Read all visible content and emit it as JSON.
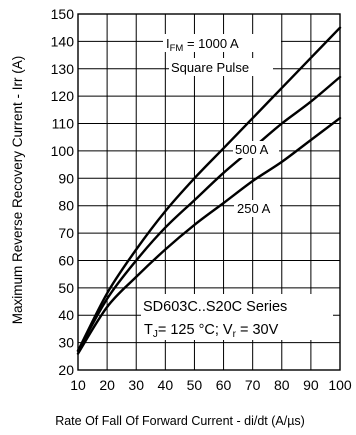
{
  "chart_data": {
    "type": "line",
    "xlabel": "Rate Of Fall Of Forward Current - di/dt (A/µs)",
    "ylabel": "Maximum Reverse Recovery Current - Irr (A)",
    "xlim": [
      10,
      100
    ],
    "ylim": [
      20,
      150
    ],
    "xticks": [
      10,
      20,
      30,
      40,
      50,
      60,
      70,
      80,
      90,
      100
    ],
    "yticks": [
      20,
      30,
      40,
      50,
      60,
      70,
      80,
      90,
      100,
      110,
      120,
      130,
      140,
      150
    ],
    "grid": true,
    "series": [
      {
        "name": "IFM = 1000 A",
        "x": [
          10,
          20,
          30,
          40,
          50,
          60,
          70,
          80,
          90,
          100
        ],
        "y": [
          27,
          48,
          64,
          78,
          90,
          101,
          112,
          123,
          134,
          145
        ]
      },
      {
        "name": "500 A",
        "x": [
          10,
          20,
          30,
          40,
          50,
          60,
          70,
          80,
          90,
          100
        ],
        "y": [
          27,
          46,
          60,
          72,
          82,
          92,
          101,
          110,
          118,
          127
        ]
      },
      {
        "name": "250 A",
        "x": [
          10,
          20,
          30,
          40,
          50,
          60,
          70,
          80,
          90,
          100
        ],
        "y": [
          26,
          43,
          54,
          64,
          73,
          81,
          89,
          96,
          104,
          112
        ]
      }
    ],
    "annotations": {
      "ifm_main": "I",
      "ifm_sub": "FM",
      "ifm_rest": " = 1000 A",
      "pulse": "Square Pulse",
      "label_500": "500 A",
      "label_250": "250 A",
      "series_title": "SD603C..S20C Series",
      "cond_tj": "T",
      "cond_tj_sub": "J",
      "cond_mid": "= 125 °C; V",
      "cond_vr_sub": "r",
      "cond_end": " = 30V"
    }
  }
}
